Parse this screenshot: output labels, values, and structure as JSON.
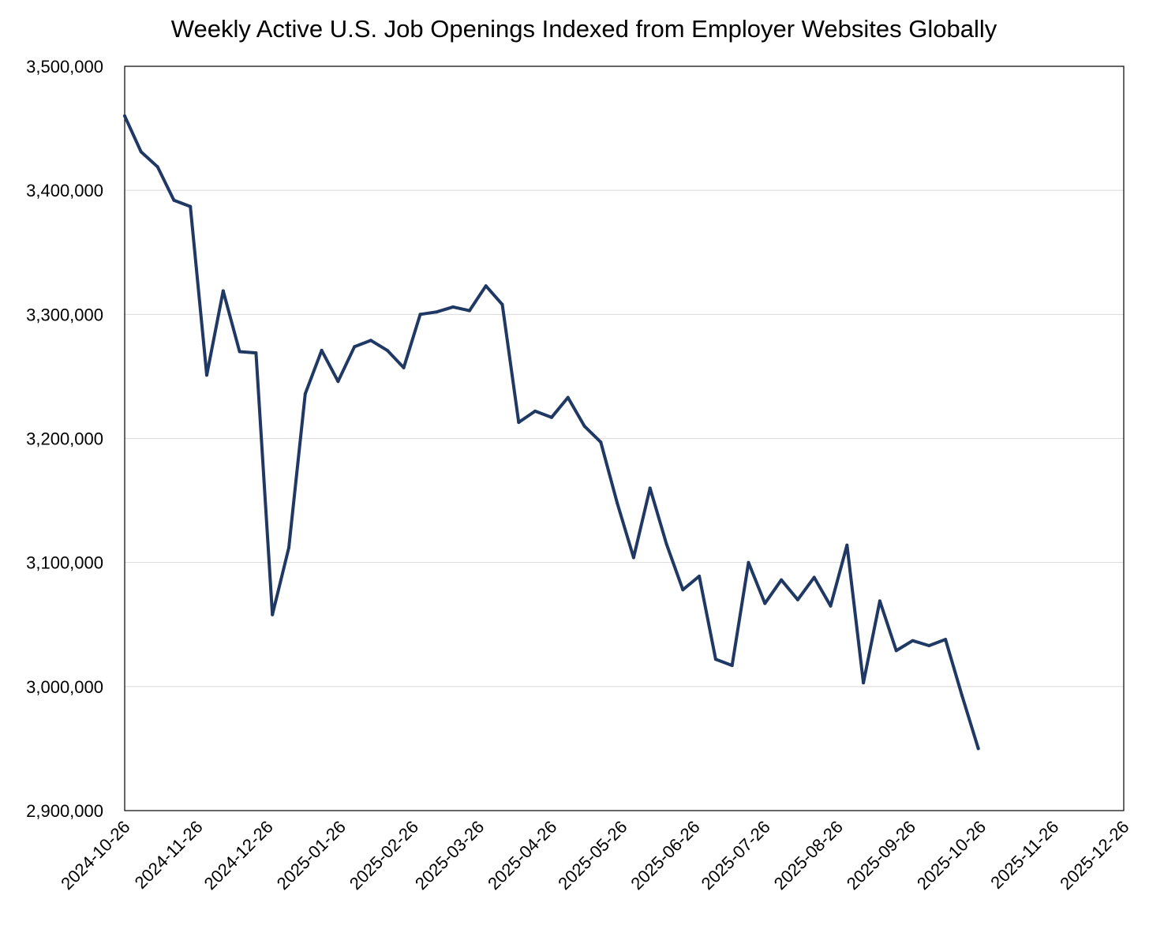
{
  "chart_data": {
    "type": "line",
    "title": "Weekly Active U.S. Job Openings Indexed from Employer Websites Globally",
    "xlabel": "",
    "ylabel": "",
    "x_axis_type": "date",
    "xlim": [
      "2024-10-26",
      "2025-12-26"
    ],
    "ylim": [
      2900000,
      3500000
    ],
    "y_ticks": [
      2900000,
      3000000,
      3100000,
      3200000,
      3300000,
      3400000,
      3500000
    ],
    "y_tick_labels": [
      "2,900,000",
      "3,000,000",
      "3,100,000",
      "3,200,000",
      "3,300,000",
      "3,400,000",
      "3,500,000"
    ],
    "x_ticks": [
      "2024-10-26",
      "2024-11-26",
      "2024-12-26",
      "2025-01-26",
      "2025-02-26",
      "2025-03-26",
      "2025-04-26",
      "2025-05-26",
      "2025-06-26",
      "2025-07-26",
      "2025-08-26",
      "2025-09-26",
      "2025-10-26",
      "2025-11-26",
      "2025-12-26"
    ],
    "x_tick_labels": [
      "2024-10-26",
      "2024-11-26",
      "2024-12-26",
      "2025-01-26",
      "2025-02-26",
      "2025-03-26",
      "2025-04-26",
      "2025-05-26",
      "2025-06-26",
      "2025-07-26",
      "2025-08-26",
      "2025-09-26",
      "2025-10-26",
      "2025-11-26",
      "2025-12-26"
    ],
    "grid": "horizontal",
    "legend": "none",
    "series": [
      {
        "color": "#1f3864",
        "x": [
          "2024-10-26",
          "2024-11-02",
          "2024-11-09",
          "2024-11-16",
          "2024-11-23",
          "2024-11-30",
          "2024-12-07",
          "2024-12-14",
          "2024-12-21",
          "2024-12-28",
          "2025-01-04",
          "2025-01-11",
          "2025-01-18",
          "2025-01-25",
          "2025-02-01",
          "2025-02-08",
          "2025-02-15",
          "2025-02-22",
          "2025-03-01",
          "2025-03-08",
          "2025-03-15",
          "2025-03-22",
          "2025-03-29",
          "2025-04-05",
          "2025-04-12",
          "2025-04-19",
          "2025-04-26",
          "2025-05-03",
          "2025-05-10",
          "2025-05-17",
          "2025-05-24",
          "2025-05-31",
          "2025-06-07",
          "2025-06-14",
          "2025-06-21",
          "2025-06-28",
          "2025-07-05",
          "2025-07-12",
          "2025-07-19",
          "2025-07-26",
          "2025-08-02",
          "2025-08-09",
          "2025-08-16",
          "2025-08-23",
          "2025-08-30",
          "2025-09-06",
          "2025-09-13",
          "2025-09-20",
          "2025-09-27",
          "2025-10-04",
          "2025-10-11",
          "2025-10-18",
          "2025-10-25"
        ],
        "y": [
          3460000,
          3431000,
          3419000,
          3392000,
          3387000,
          3251000,
          3319000,
          3270000,
          3269000,
          3058000,
          3112000,
          3236000,
          3271000,
          3246000,
          3274000,
          3279000,
          3271000,
          3257000,
          3300000,
          3302000,
          3306000,
          3303000,
          3323000,
          3308000,
          3213000,
          3222000,
          3217000,
          3233000,
          3210000,
          3197000,
          3148000,
          3104000,
          3160000,
          3115000,
          3078000,
          3089000,
          3022000,
          3017000,
          3100000,
          3067000,
          3086000,
          3070000,
          3088000,
          3065000,
          3114000,
          3003000,
          3069000,
          3029000,
          3037000,
          3033000,
          3038000,
          2993000,
          2950000
        ]
      }
    ]
  }
}
